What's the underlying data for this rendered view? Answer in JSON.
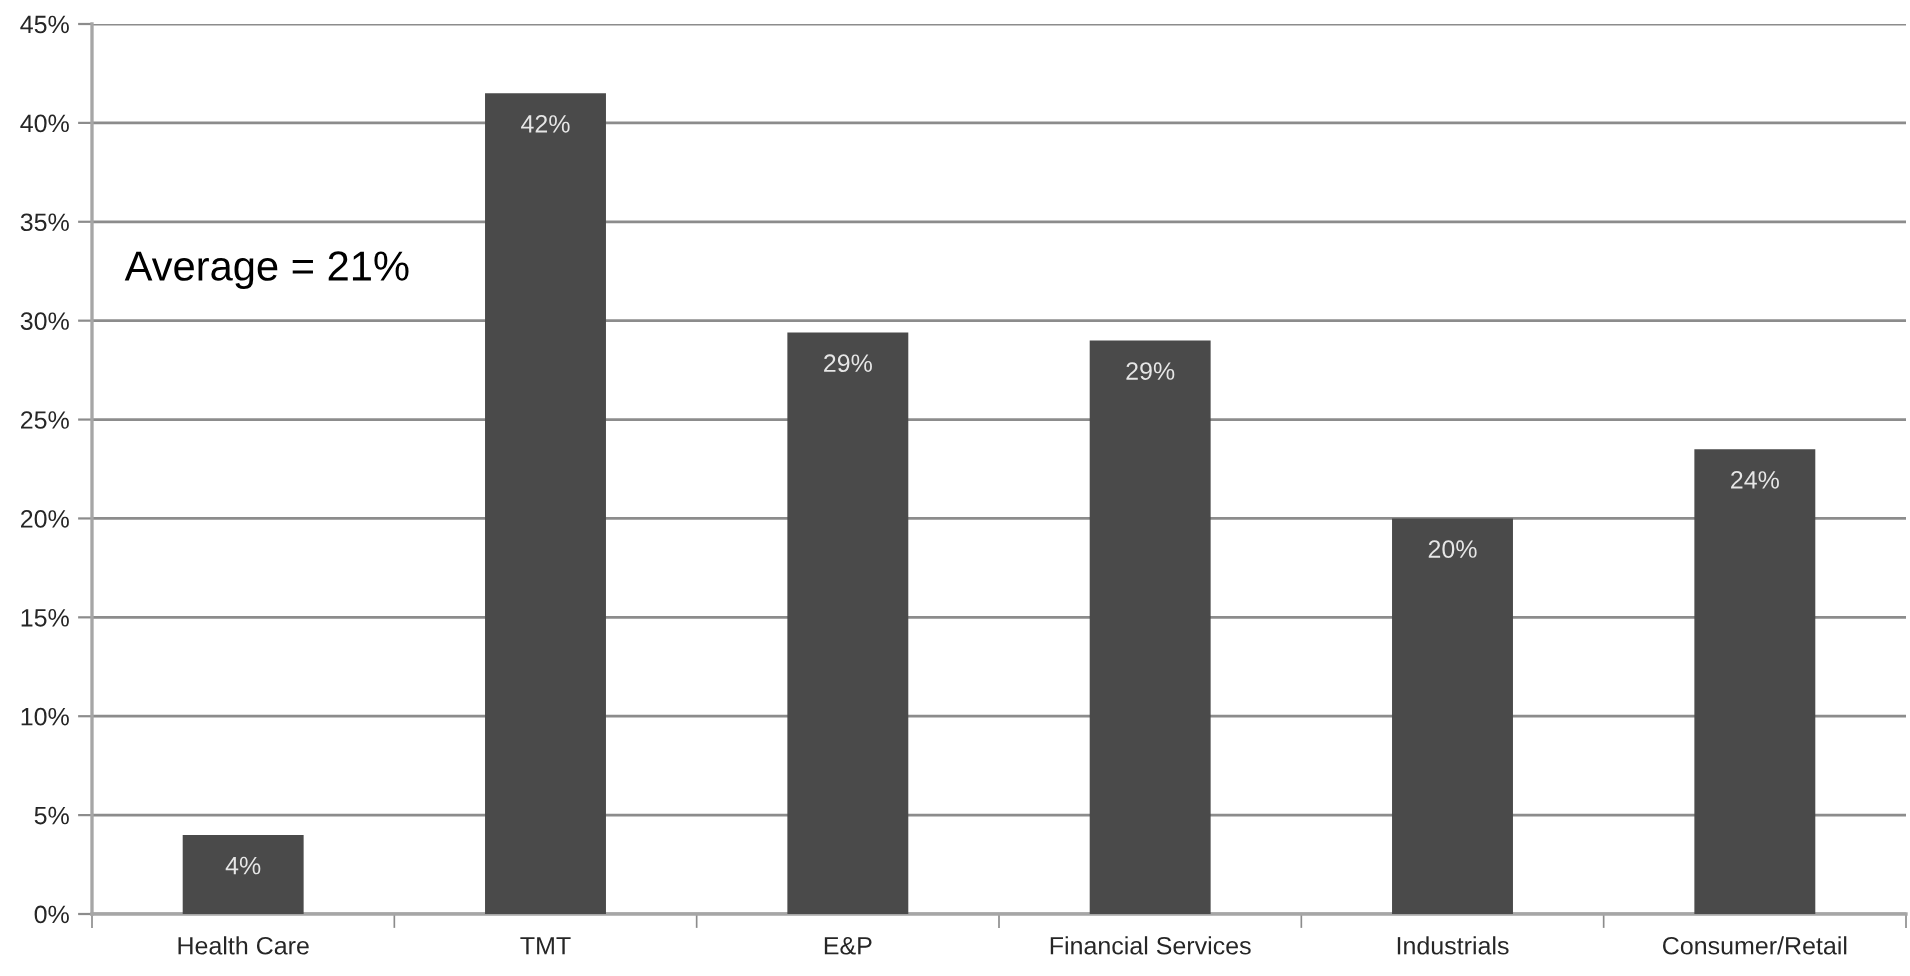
{
  "chart_data": {
    "type": "bar",
    "categories": [
      "Health Care",
      "TMT",
      "E&P",
      "Financial Services",
      "Industrials",
      "Consumer/Retail"
    ],
    "values": [
      4.0,
      41.5,
      29.4,
      29.0,
      20.0,
      23.5
    ],
    "color": "#4a4a4a",
    "value_labels": [
      "4%",
      "42%",
      "29%",
      "29%",
      "20%",
      "24%"
    ],
    "ylim": [
      0,
      45
    ],
    "yticks": [
      {
        "value": 0,
        "label": "0%"
      },
      {
        "value": 5,
        "label": "5%"
      },
      {
        "value": 10,
        "label": "10%"
      },
      {
        "value": 15,
        "label": "15%"
      },
      {
        "value": 20,
        "label": "20%"
      },
      {
        "value": 25,
        "label": "25%"
      },
      {
        "value": 30,
        "label": "30%"
      },
      {
        "value": 35,
        "label": "35%"
      },
      {
        "value": 40,
        "label": "40%"
      },
      {
        "value": 45,
        "label": "45%"
      }
    ],
    "grid": "y",
    "annotations": [
      "Average = 21%"
    ]
  }
}
